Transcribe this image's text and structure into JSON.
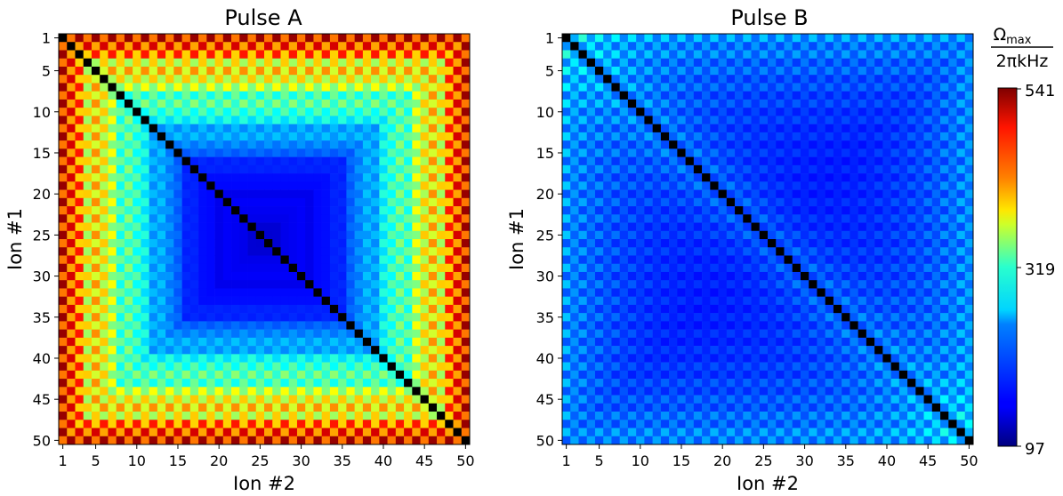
{
  "chart_data": [
    {
      "type": "heatmap",
      "title": "Pulse A",
      "xlabel": "Ion #2",
      "ylabel": "Ion #1",
      "n": 50,
      "xticks": [
        1,
        5,
        10,
        15,
        20,
        25,
        30,
        35,
        40,
        45,
        50
      ],
      "yticks": [
        1,
        5,
        10,
        15,
        20,
        25,
        30,
        35,
        40,
        45,
        50
      ],
      "pattern": "symmetric; black diagonal; values highest near corners (ions 1-12 and 40-50), decaying toward center",
      "vmin": 97,
      "vmax": 541
    },
    {
      "type": "heatmap",
      "title": "Pulse B",
      "xlabel": "Ion #2",
      "ylabel": "Ion #1",
      "n": 50,
      "xticks": [
        1,
        5,
        10,
        15,
        20,
        25,
        30,
        35,
        40,
        45,
        50
      ],
      "yticks": [
        1,
        5,
        10,
        15,
        20,
        25,
        30,
        35,
        40,
        45,
        50
      ],
      "pattern": "symmetric; black diagonal; mostly low values with moderate bands near the diagonal",
      "vmin": 97,
      "vmax": 541
    }
  ],
  "colorbar": {
    "label_top": "Ω",
    "label_top_sub": "max",
    "label_bottom": "2πkHz",
    "colormap": "jet",
    "ticks": [
      "541",
      "319",
      "97"
    ]
  }
}
